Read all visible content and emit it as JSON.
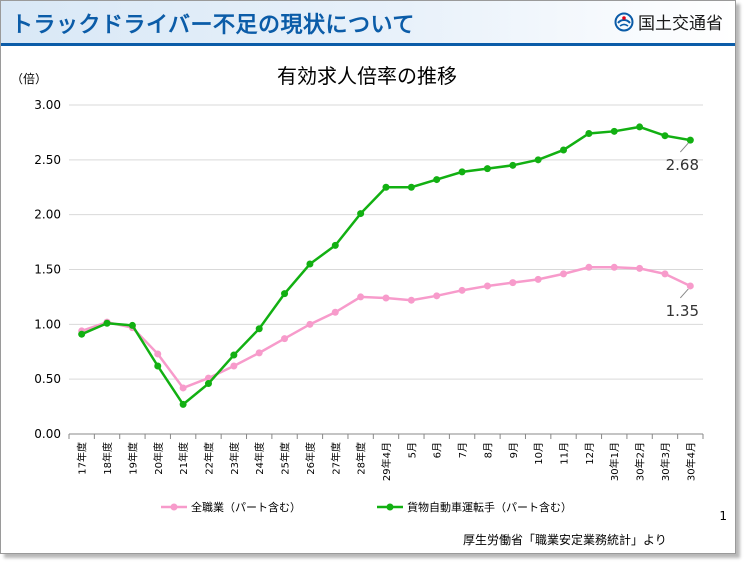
{
  "header": {
    "title": "トラックドライバー不足の現状について",
    "org_name": "国土交通省"
  },
  "page_number": "1",
  "source_note": "厚生労働省「職業安定業務統計」より",
  "colors": {
    "header_accent": "#0b5ca8",
    "series_all_jobs": "#f79bcb",
    "series_truck_drivers": "#12b012"
  },
  "chart_data": {
    "type": "line",
    "title": "有効求人倍率の推移",
    "ylabel": "（倍）",
    "xlabel": "",
    "ylim": [
      0,
      3.0
    ],
    "yticks": [
      "0.00",
      "0.50",
      "1.00",
      "1.50",
      "2.00",
      "2.50",
      "3.00"
    ],
    "grid": "horizontal",
    "legend_position": "bottom",
    "categories": [
      "17年度",
      "18年度",
      "19年度",
      "20年度",
      "21年度",
      "22年度",
      "23年度",
      "24年度",
      "25年度",
      "26年度",
      "27年度",
      "28年度",
      "29年4月",
      "5月",
      "6月",
      "7月",
      "8月",
      "9月",
      "10月",
      "11月",
      "12月",
      "30年1月",
      "30年2月",
      "30年3月",
      "30年4月"
    ],
    "series": [
      {
        "name": "全職業（パート含む）",
        "color": "#f79bcb",
        "values": [
          0.94,
          1.02,
          0.97,
          0.73,
          0.42,
          0.51,
          0.62,
          0.74,
          0.87,
          1.0,
          1.11,
          1.25,
          1.24,
          1.22,
          1.26,
          1.31,
          1.35,
          1.38,
          1.41,
          1.46,
          1.52,
          1.52,
          1.51,
          1.46,
          1.35
        ]
      },
      {
        "name": "貨物自動車運転手（パート含む）",
        "color": "#12b012",
        "values": [
          0.91,
          1.01,
          0.99,
          0.62,
          0.27,
          0.46,
          0.72,
          0.96,
          1.28,
          1.55,
          1.72,
          2.01,
          2.25,
          2.25,
          2.32,
          2.39,
          2.42,
          2.45,
          2.5,
          2.59,
          2.74,
          2.76,
          2.8,
          2.72,
          2.68
        ]
      }
    ],
    "annotations": [
      "2.68",
      "1.35"
    ]
  }
}
